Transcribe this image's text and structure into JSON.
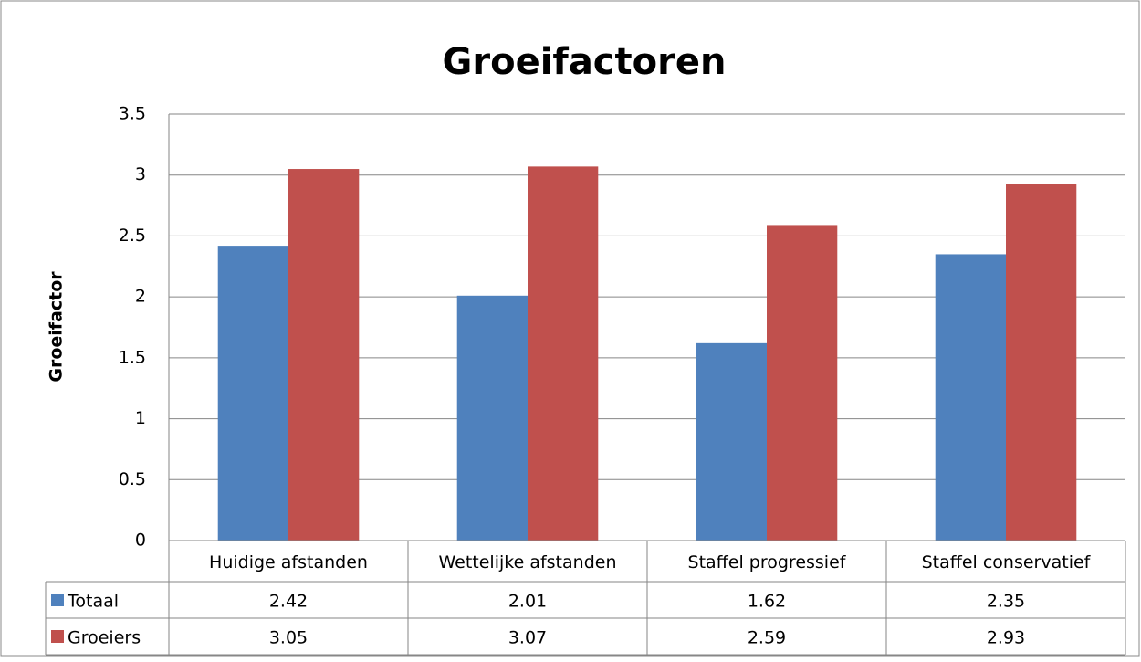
{
  "chart_data": {
    "type": "bar",
    "title": "Groeifactoren",
    "y_label": "Groeifactor",
    "categories": [
      "Huidige afstanden",
      "Wettelijke afstanden",
      "Staffel progressief",
      "Staffel conservatief"
    ],
    "series": [
      {
        "name": "Totaal",
        "color": "#4f81bd",
        "values": [
          2.42,
          2.01,
          1.62,
          2.35
        ]
      },
      {
        "name": "Groeiers",
        "color": "#c0504d",
        "values": [
          3.05,
          3.07,
          2.59,
          2.93
        ]
      }
    ],
    "ylim": [
      0,
      3.5
    ],
    "yticks": [
      0,
      0.5,
      1,
      1.5,
      2,
      2.5,
      3,
      3.5
    ],
    "grid": true,
    "data_table": true
  }
}
